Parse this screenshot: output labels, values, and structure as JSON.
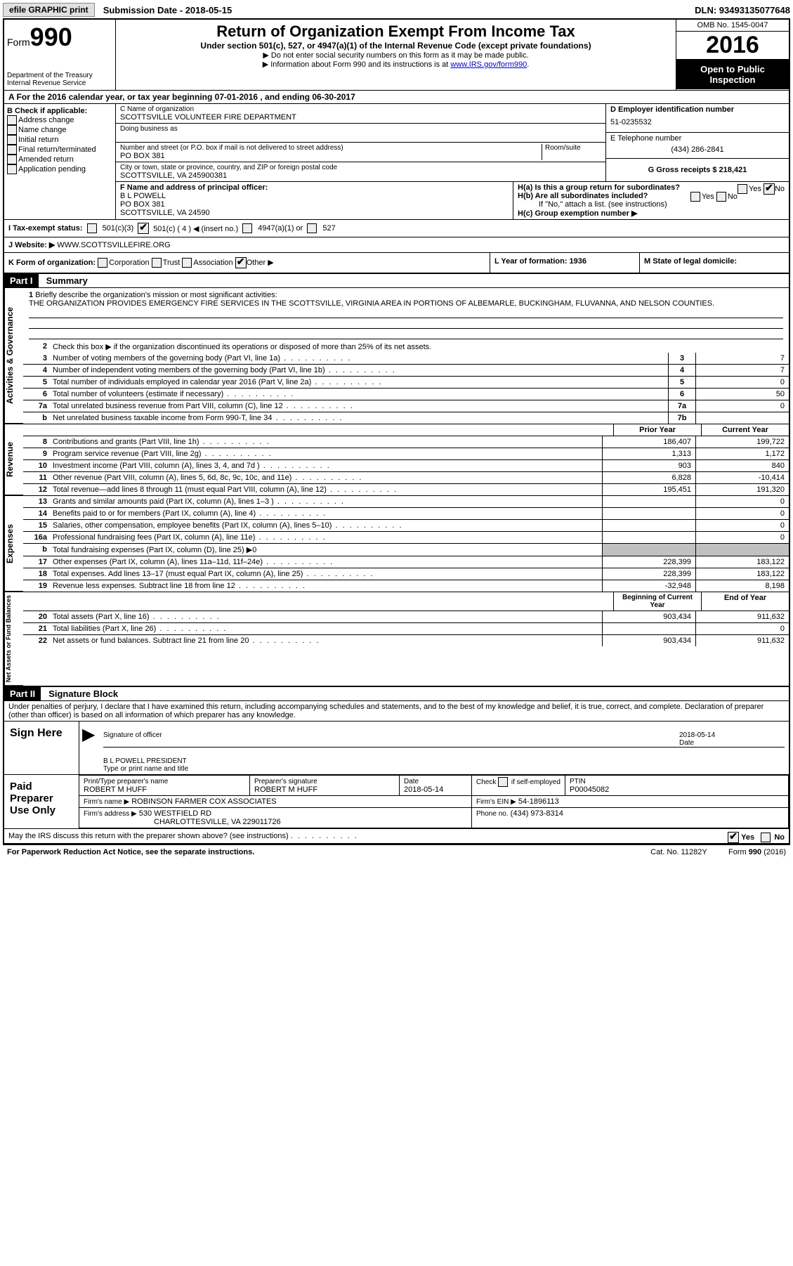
{
  "topbar": {
    "efile": "efile GRAPHIC print",
    "submission": "Submission Date - 2018-05-15",
    "dln": "DLN: 93493135077648"
  },
  "header": {
    "form_label": "Form",
    "form_num": "990",
    "dept": "Department of the Treasury",
    "irs": "Internal Revenue Service",
    "title": "Return of Organization Exempt From Income Tax",
    "subtitle": "Under section 501(c), 527, or 4947(a)(1) of the Internal Revenue Code (except private foundations)",
    "note1": "▶ Do not enter social security numbers on this form as it may be made public.",
    "note2_pre": "▶ Information about Form 990 and its instructions is at ",
    "note2_link": "www.IRS.gov/form990",
    "omb": "OMB No. 1545-0047",
    "year": "2016",
    "open": "Open to Public Inspection"
  },
  "rowA": "A  For the 2016 calendar year, or tax year beginning 07-01-2016   , and ending 06-30-2017",
  "secB": {
    "title": "B Check if applicable:",
    "items": [
      "Address change",
      "Name change",
      "Initial return",
      "Final return/terminated",
      "Amended return",
      "Application pending"
    ]
  },
  "secC": {
    "name_label": "C Name of organization",
    "name": "SCOTTSVILLE VOLUNTEER FIRE DEPARTMENT",
    "dba_label": "Doing business as",
    "addr_label": "Number and street (or P.O. box if mail is not delivered to street address)",
    "room_label": "Room/suite",
    "addr": "PO BOX 381",
    "city_label": "City or town, state or province, country, and ZIP or foreign postal code",
    "city": "SCOTTSVILLE, VA  245900381"
  },
  "secD": {
    "label": "D Employer identification number",
    "val": "51-0235532"
  },
  "secE": {
    "label": "E Telephone number",
    "val": "(434) 286-2841"
  },
  "secG": {
    "label": "G Gross receipts $ 218,421"
  },
  "secF": {
    "label": "F  Name and address of principal officer:",
    "name": "B L POWELL",
    "addr1": "PO BOX 381",
    "addr2": "SCOTTSVILLE, VA  24590"
  },
  "secH": {
    "a": "H(a)  Is this a group return for subordinates?",
    "b": "H(b)  Are all subordinates included?",
    "note": "If \"No,\" attach a list. (see instructions)",
    "c": "H(c)  Group exemption number ▶",
    "yes": "Yes",
    "no": "No"
  },
  "secI": {
    "label": "I  Tax-exempt status:",
    "o1": "501(c)(3)",
    "o2": "501(c) ( 4 ) ◀ (insert no.)",
    "o3": "4947(a)(1) or",
    "o4": "527"
  },
  "secJ": {
    "label": "J  Website: ▶",
    "val": "WWW.SCOTTSVILLEFIRE.ORG"
  },
  "secK": {
    "label": "K Form of organization:",
    "corp": "Corporation",
    "trust": "Trust",
    "assoc": "Association",
    "other": "Other ▶"
  },
  "secL": "L Year of formation: 1936",
  "secM": "M State of legal domicile:",
  "part1": {
    "hdr": "Part I",
    "title": "Summary",
    "l1_label": "1",
    "l1": "Briefly describe the organization's mission or most significant activities:",
    "mission": "THE ORGANIZATION PROVIDES EMERGENCY FIRE SERVICES IN THE SCOTTSVILLE, VIRGINIA AREA IN PORTIONS OF ALBEMARLE, BUCKINGHAM, FLUVANNA, AND NELSON COUNTIES.",
    "l2": "Check this box ▶       if the organization discontinued its operations or disposed of more than 25% of its net assets.",
    "sideA": "Activities & Governance",
    "sideR": "Revenue",
    "sideE": "Expenses",
    "sideN": "Net Assets or Fund Balances",
    "lines_gov": [
      {
        "n": "3",
        "t": "Number of voting members of the governing body (Part VI, line 1a)",
        "box": "3",
        "v": "7"
      },
      {
        "n": "4",
        "t": "Number of independent voting members of the governing body (Part VI, line 1b)",
        "box": "4",
        "v": "7"
      },
      {
        "n": "5",
        "t": "Total number of individuals employed in calendar year 2016 (Part V, line 2a)",
        "box": "5",
        "v": "0"
      },
      {
        "n": "6",
        "t": "Total number of volunteers (estimate if necessary)",
        "box": "6",
        "v": "50"
      },
      {
        "n": "7a",
        "t": "Total unrelated business revenue from Part VIII, column (C), line 12",
        "box": "7a",
        "v": "0"
      },
      {
        "n": "b",
        "t": "Net unrelated business taxable income from Form 990-T, line 34",
        "box": "7b",
        "v": ""
      }
    ],
    "col_prior": "Prior Year",
    "col_curr": "Current Year",
    "lines_rev": [
      {
        "n": "8",
        "t": "Contributions and grants (Part VIII, line 1h)",
        "p": "186,407",
        "c": "199,722"
      },
      {
        "n": "9",
        "t": "Program service revenue (Part VIII, line 2g)",
        "p": "1,313",
        "c": "1,172"
      },
      {
        "n": "10",
        "t": "Investment income (Part VIII, column (A), lines 3, 4, and 7d )",
        "p": "903",
        "c": "840"
      },
      {
        "n": "11",
        "t": "Other revenue (Part VIII, column (A), lines 5, 6d, 8c, 9c, 10c, and 11e)",
        "p": "6,828",
        "c": "-10,414"
      },
      {
        "n": "12",
        "t": "Total revenue—add lines 8 through 11 (must equal Part VIII, column (A), line 12)",
        "p": "195,451",
        "c": "191,320"
      }
    ],
    "lines_exp": [
      {
        "n": "13",
        "t": "Grants and similar amounts paid (Part IX, column (A), lines 1–3 )",
        "p": "",
        "c": "0"
      },
      {
        "n": "14",
        "t": "Benefits paid to or for members (Part IX, column (A), line 4)",
        "p": "",
        "c": "0"
      },
      {
        "n": "15",
        "t": "Salaries, other compensation, employee benefits (Part IX, column (A), lines 5–10)",
        "p": "",
        "c": "0"
      },
      {
        "n": "16a",
        "t": "Professional fundraising fees (Part IX, column (A), line 11e)",
        "p": "",
        "c": "0"
      },
      {
        "n": "b",
        "t": "Total fundraising expenses (Part IX, column (D), line 25) ▶0",
        "p": "GREY",
        "c": "GREY"
      },
      {
        "n": "17",
        "t": "Other expenses (Part IX, column (A), lines 11a–11d, 11f–24e)",
        "p": "228,399",
        "c": "183,122"
      },
      {
        "n": "18",
        "t": "Total expenses. Add lines 13–17 (must equal Part IX, column (A), line 25)",
        "p": "228,399",
        "c": "183,122"
      },
      {
        "n": "19",
        "t": "Revenue less expenses. Subtract line 18 from line 12",
        "p": "-32,948",
        "c": "8,198"
      }
    ],
    "col_beg": "Beginning of Current Year",
    "col_end": "End of Year",
    "lines_net": [
      {
        "n": "20",
        "t": "Total assets (Part X, line 16)",
        "p": "903,434",
        "c": "911,632"
      },
      {
        "n": "21",
        "t": "Total liabilities (Part X, line 26)",
        "p": "",
        "c": "0"
      },
      {
        "n": "22",
        "t": "Net assets or fund balances. Subtract line 21 from line 20",
        "p": "903,434",
        "c": "911,632"
      }
    ]
  },
  "part2": {
    "hdr": "Part II",
    "title": "Signature Block",
    "decl": "Under penalties of perjury, I declare that I have examined this return, including accompanying schedules and statements, and to the best of my knowledge and belief, it is true, correct, and complete. Declaration of preparer (other than officer) is based on all information of which preparer has any knowledge.",
    "sign_here": "Sign Here",
    "sig_officer": "Signature of officer",
    "sig_date": "2018-05-14",
    "date_lbl": "Date",
    "sig_name": "B L POWELL  PRESIDENT",
    "sig_name_lbl": "Type or print name and title",
    "paid": "Paid Preparer Use Only",
    "prep_name_lbl": "Print/Type preparer's name",
    "prep_name": "ROBERT M HUFF",
    "prep_sig_lbl": "Preparer's signature",
    "prep_sig": "ROBERT M HUFF",
    "prep_date_lbl": "Date",
    "prep_date": "2018-05-14",
    "self_lbl": "Check       if self-employed",
    "ptin_lbl": "PTIN",
    "ptin": "P00045082",
    "firm_name_lbl": "Firm's name      ▶",
    "firm_name": "ROBINSON FARMER COX ASSOCIATES",
    "firm_ein_lbl": "Firm's EIN ▶",
    "firm_ein": "54-1896113",
    "firm_addr_lbl": "Firm's address ▶",
    "firm_addr": "530 WESTFIELD RD",
    "firm_city": "CHARLOTTESVILLE, VA  229011726",
    "firm_phone_lbl": "Phone no.",
    "firm_phone": "(434) 973-8314",
    "discuss": "May the IRS discuss this return with the preparer shown above? (see instructions)",
    "yes": "Yes",
    "no": "No"
  },
  "footer": {
    "left": "For Paperwork Reduction Act Notice, see the separate instructions.",
    "mid": "Cat. No. 11282Y",
    "right": "Form 990 (2016)"
  }
}
